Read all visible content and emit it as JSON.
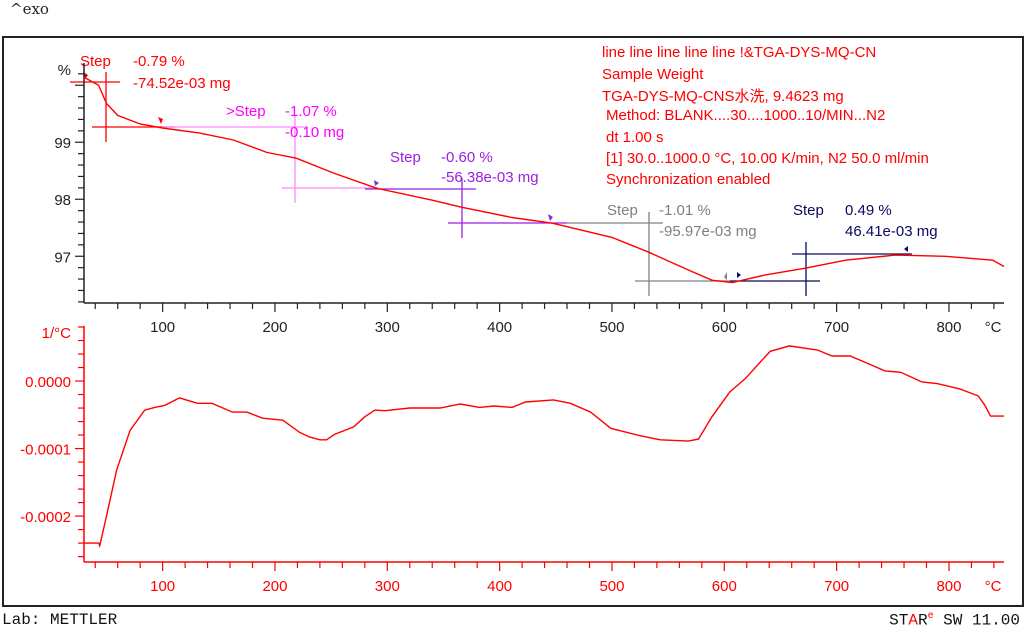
{
  "header": {
    "exo_label": "^exo"
  },
  "footer": {
    "lab": "Lab: METTLER",
    "software_star": "STAR",
    "software_e": "e",
    "software_version": " SW 11.00"
  },
  "info": [
    "line line line line line !&TGA-DYS-MQ-CN",
    "Sample Weight",
    "TGA-DYS-MQ-CNS水洗, 9.4623 mg",
    "Method: BLANK....30....1000..10/MIN...N2",
    "dt 1.00 s",
    "[1] 30.0..1000.0 °C, 10.00 K/min, N2 50.0 ml/min",
    "Synchronization enabled"
  ],
  "chart_data": [
    {
      "type": "line",
      "ylabel": "%",
      "xlabel": "°C",
      "xlim": [
        30,
        849
      ],
      "ylim": [
        96.18,
        100.39
      ],
      "xticks": [
        100,
        200,
        300,
        400,
        500,
        600,
        700,
        800
      ],
      "yticks": [
        97,
        98,
        99
      ],
      "color": "#ff0000",
      "grid": false,
      "series": [
        {
          "x": [
            30,
            43,
            50,
            60,
            80,
            100,
            133,
            163,
            193,
            219,
            252,
            291,
            341,
            366,
            411,
            447,
            500,
            533,
            569,
            589,
            607,
            636,
            672,
            708,
            752,
            797,
            839,
            849
          ],
          "y": [
            100.14,
            100.0,
            99.68,
            99.47,
            99.32,
            99.25,
            99.16,
            99.04,
            98.82,
            98.72,
            98.46,
            98.19,
            97.98,
            97.86,
            97.68,
            97.58,
            97.33,
            97.07,
            96.75,
            96.58,
            96.54,
            96.67,
            96.79,
            96.93,
            97.02,
            97.0,
            96.93,
            96.82
          ]
        }
      ],
      "annotations": [
        {
          "label": "Step",
          "value1": "-0.79 %",
          "value2": "-74.52e-03 mg",
          "color": "#ff0000"
        },
        {
          "label": ">Step",
          "value1": "-1.07 %",
          "value2": "-0.10 mg",
          "color": "#ff00ff"
        },
        {
          "label": "Step",
          "value1": "-0.60 %",
          "value2": "-56.38e-03 mg",
          "color": "#9b1fe0"
        },
        {
          "label": "Step",
          "value1": "-1.01 %",
          "value2": "-95.97e-03 mg",
          "color": "#808080"
        },
        {
          "label": "Step",
          "value1": "0.49 %",
          "value2": "46.41e-03 mg",
          "color": "#0a0a60"
        }
      ]
    },
    {
      "type": "line",
      "ylabel": "1/°C",
      "xlabel": "°C",
      "xlim": [
        30,
        849
      ],
      "ylim": [
        -0.000268,
        8.15e-05
      ],
      "xticks": [
        100,
        200,
        300,
        400,
        500,
        600,
        700,
        800
      ],
      "yticks": [
        0.0,
        -0.0001,
        -0.0002
      ],
      "ytick_labels": [
        "0.0000",
        "-0.0001",
        "-0.0002"
      ],
      "color": "#ff0000",
      "grid": false,
      "series": [
        {
          "x": [
            30,
            43,
            44,
            50,
            59,
            71,
            84,
            93,
            102,
            115,
            131,
            144,
            162,
            175,
            189,
            207,
            222,
            231,
            240,
            246,
            253,
            270,
            280,
            289,
            298,
            320,
            347,
            365,
            382,
            395,
            411,
            423,
            448,
            463,
            481,
            499,
            525,
            543,
            568,
            577,
            589,
            605,
            619,
            632,
            641,
            658,
            683,
            696,
            712,
            725,
            743,
            757,
            776,
            790,
            810,
            826,
            832,
            837,
            849
          ],
          "y": [
            -0.00024,
            -0.00024,
            -0.000244,
            -0.0002,
            -0.000132,
            -7.3e-05,
            -4.3e-05,
            -3.9e-05,
            -3.6e-05,
            -2.5e-05,
            -3.3e-05,
            -3.3e-05,
            -4.6e-05,
            -4.6e-05,
            -5.5e-05,
            -5.8e-05,
            -7.6e-05,
            -8.3e-05,
            -8.7e-05,
            -8.7e-05,
            -7.9e-05,
            -6.8e-05,
            -5.3e-05,
            -4.3e-05,
            -4.4e-05,
            -4e-05,
            -4e-05,
            -3.4e-05,
            -3.9e-05,
            -3.7e-05,
            -3.9e-05,
            -3.1e-05,
            -2.8e-05,
            -3.3e-05,
            -4.6e-05,
            -7e-05,
            -8.1e-05,
            -8.7e-05,
            -8.9e-05,
            -8.6e-05,
            -5.3e-05,
            -1.6e-05,
            4e-06,
            2.8e-05,
            4.4e-05,
            5.2e-05,
            4.6e-05,
            3.7e-05,
            3.7e-05,
            2.8e-05,
            1.5e-05,
            1.3e-05,
            -1.5e-06,
            -4e-06,
            -1.2e-05,
            -2.2e-05,
            -3.6e-05,
            -5.2e-05,
            -5.2e-05
          ]
        }
      ]
    }
  ]
}
